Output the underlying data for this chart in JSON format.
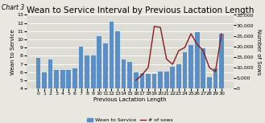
{
  "title": "Wean to Service Interval by Previous Lactation Length",
  "chart_label": "Chart 3",
  "xlabel": "Previous Lactation Length",
  "ylabel_left": "Wean to Service",
  "ylabel_right": "Number of Sows",
  "categories": [
    0,
    1,
    2,
    3,
    4,
    5,
    6,
    7,
    8,
    9,
    10,
    11,
    12,
    13,
    14,
    15,
    16,
    17,
    18,
    19,
    20,
    21,
    22,
    23,
    24,
    25,
    26,
    27,
    28,
    29,
    30
  ],
  "bar_values": [
    7.7,
    6.0,
    7.5,
    6.3,
    6.3,
    6.3,
    6.5,
    9.1,
    8.0,
    8.0,
    10.4,
    9.5,
    12.2,
    11.0,
    7.5,
    7.3,
    6.0,
    5.9,
    5.8,
    5.8,
    6.1,
    6.1,
    6.7,
    7.0,
    8.4,
    9.3,
    10.9,
    8.9,
    5.4,
    6.5,
    10.7
  ],
  "line_values": [
    null,
    null,
    null,
    null,
    null,
    null,
    null,
    null,
    null,
    null,
    null,
    null,
    null,
    null,
    null,
    null,
    4000,
    6500,
    10000,
    29500,
    29000,
    14000,
    11500,
    18000,
    19500,
    26000,
    21000,
    18000,
    10000,
    8000,
    26000
  ],
  "bar_color": "#5b8fc7",
  "line_color": "#8b1a1a",
  "ylim_left": [
    4,
    13
  ],
  "ylim_right": [
    0,
    35000
  ],
  "yticks_left": [
    4,
    5,
    6,
    7,
    8,
    9,
    10,
    11,
    12,
    13
  ],
  "yticks_right": [
    0,
    5000,
    10000,
    15000,
    20000,
    25000,
    30000,
    35000
  ],
  "ytick_labels_right": [
    "0",
    "5,000",
    "10,000",
    "15,000",
    "20,000",
    "25,000",
    "30,000",
    "35,000"
  ],
  "legend_bar_label": "Wean to Service",
  "legend_line_label": "# of sows",
  "background_color": "#e8e8e0",
  "plot_bg_color": "#dcdcd4",
  "grid_color": "#ffffff",
  "title_fontsize": 7.5,
  "chart_label_fontsize": 5.5,
  "label_fontsize": 5,
  "tick_fontsize": 4.5,
  "legend_fontsize": 4.5
}
